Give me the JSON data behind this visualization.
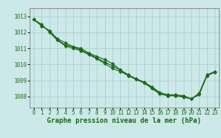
{
  "title": "Graphe pression niveau de la mer (hPa)",
  "background_color": "#cce8e8",
  "grid_color": "#aacfcf",
  "line_color": "#1a6b1a",
  "x_ticks": [
    0,
    1,
    2,
    3,
    4,
    5,
    6,
    7,
    8,
    9,
    10,
    11,
    12,
    13,
    14,
    15,
    16,
    17,
    18,
    19,
    20,
    21,
    22,
    23
  ],
  "y_ticks": [
    1008,
    1009,
    1010,
    1011,
    1012,
    1013
  ],
  "ylim": [
    1007.3,
    1013.5
  ],
  "xlim": [
    -0.5,
    23.5
  ],
  "series": [
    [
      1012.8,
      1012.5,
      1012.0,
      1011.5,
      1011.15,
      1011.0,
      1010.85,
      1010.6,
      1010.35,
      1010.05,
      1009.75,
      1009.55,
      1009.3,
      1009.05,
      1008.85,
      1008.5,
      1008.15,
      1008.05,
      1008.05,
      1008.0,
      1007.85,
      1008.1,
      1009.3,
      1009.5
    ],
    [
      1012.8,
      1012.4,
      1012.1,
      1011.6,
      1011.35,
      1011.1,
      1010.9,
      1010.65,
      1010.4,
      1010.15,
      1009.9,
      1009.65,
      1009.35,
      1009.1,
      1008.85,
      1008.55,
      1008.2,
      1008.05,
      1008.05,
      1007.95,
      1007.85,
      1008.2,
      1009.35,
      1009.55
    ],
    [
      1012.8,
      1012.4,
      1012.1,
      1011.55,
      1011.2,
      1011.1,
      1011.0,
      1010.7,
      1010.5,
      1010.3,
      1010.05,
      1009.65,
      1009.3,
      1009.1,
      1008.9,
      1008.6,
      1008.25,
      1008.1,
      1008.1,
      1008.05,
      1007.85,
      1008.15,
      1009.3,
      1009.55
    ]
  ],
  "marker": "D",
  "markersize": 2.5,
  "linewidth": 0.9,
  "title_fontsize": 7.0,
  "tick_fontsize": 5.5,
  "ytick_fontsize": 5.5
}
